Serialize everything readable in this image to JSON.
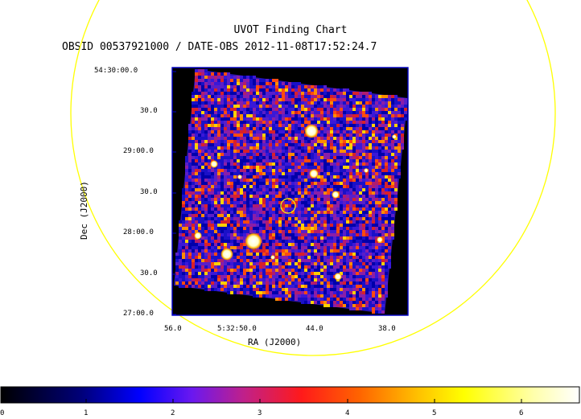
{
  "chart": {
    "title": "UVOT Finding Chart",
    "subtitle": "OBSID 00537921000 / DATE-OBS 2012-11-08T17:52:24.7",
    "x_axis_label": "RA (J2000)",
    "y_axis_label": "Dec (J2000)",
    "x_ticks": [
      "56.0",
      "5:32:50.0",
      "44.0",
      "38.0"
    ],
    "y_ticks": [
      "54:30:00.0",
      "30.0",
      "29:00.0",
      "30.0",
      "28:00.0",
      "30.0",
      "27:00.0"
    ]
  },
  "colorbar": {
    "labels": [
      "0",
      "1",
      "2",
      "3",
      "4",
      "5",
      "6"
    ],
    "colors": [
      "#000000",
      "#0000ff",
      "#9a1ee0",
      "#ff2020",
      "#ff8c00",
      "#ffff00",
      "#ffffff"
    ]
  },
  "colors": {
    "image_frame": "#0000c8",
    "circles": "#ffff00",
    "noise_bg": "#1010a0"
  }
}
